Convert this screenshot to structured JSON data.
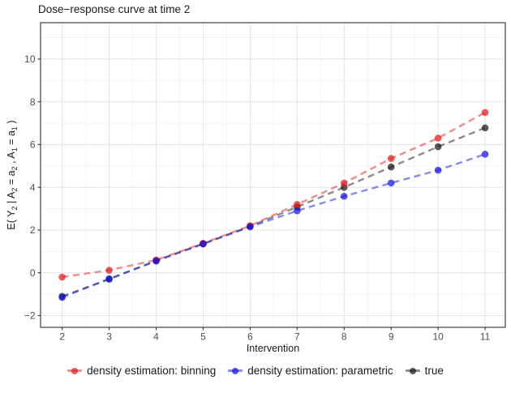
{
  "chart_data": {
    "type": "line",
    "title": "Dose−response curve at time 2",
    "xlabel": "Intervention",
    "ylabel": "E( Y_2 | A_2 = a_2 , A_1 = a_1 )",
    "ylabel_parts": [
      {
        "text": "E( Y",
        "sub": false
      },
      {
        "text": "2",
        "sub": true
      },
      {
        "text": " | A",
        "sub": false
      },
      {
        "text": "2",
        "sub": true
      },
      {
        "text": " = a",
        "sub": false
      },
      {
        "text": "2",
        "sub": true
      },
      {
        "text": " , A",
        "sub": false
      },
      {
        "text": "1",
        "sub": true
      },
      {
        "text": " = a",
        "sub": false
      },
      {
        "text": "1",
        "sub": true
      },
      {
        "text": " )",
        "sub": false
      }
    ],
    "x": [
      2,
      3,
      4,
      5,
      6,
      7,
      8,
      9,
      10,
      11
    ],
    "x_ticks": [
      2,
      3,
      4,
      5,
      6,
      7,
      8,
      9,
      10,
      11
    ],
    "y_ticks": [
      -2,
      0,
      2,
      4,
      6,
      8,
      10
    ],
    "xlim": [
      1.54,
      11.43
    ],
    "ylim": [
      -2.55,
      11.7
    ],
    "grid": true,
    "line_style": "dashed",
    "legend_position": "bottom",
    "series": [
      {
        "name": "density estimation: binning",
        "color": "#E61919",
        "values": [
          -0.2,
          0.12,
          0.6,
          1.38,
          2.2,
          3.2,
          4.2,
          5.35,
          6.3,
          7.5
        ]
      },
      {
        "name": "density estimation: parametric",
        "color": "#1414E6",
        "values": [
          -1.15,
          -0.28,
          0.55,
          1.35,
          2.15,
          2.9,
          3.58,
          4.2,
          4.8,
          5.55
        ]
      },
      {
        "name": "true",
        "color": "#1A1A1A",
        "values": [
          -1.1,
          -0.3,
          0.57,
          1.36,
          2.18,
          3.08,
          4.0,
          4.95,
          5.9,
          6.78
        ]
      }
    ],
    "colors": {
      "panel_background": "#FFFFFF",
      "panel_border": "#404040",
      "grid_major": "#E6E6E6",
      "grid_minor": "#F3F3F3",
      "tick_mark": "#333333",
      "tick_label": "#4D4D4D"
    }
  }
}
